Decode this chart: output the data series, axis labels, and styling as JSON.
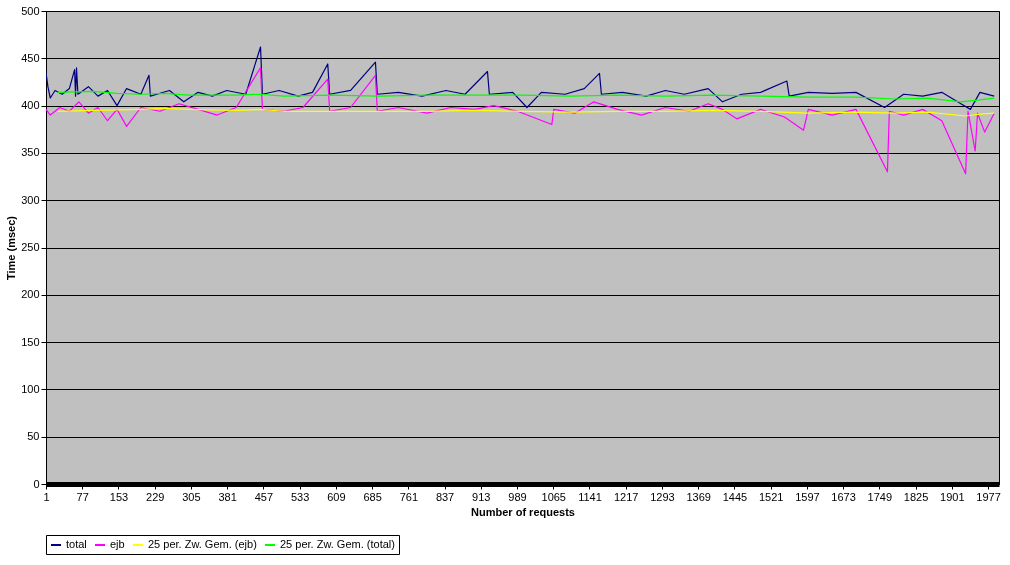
{
  "chart_data": {
    "type": "line",
    "xlabel": "Number of requests",
    "ylabel": "Time (msec)",
    "xlim": [
      1,
      2000
    ],
    "xticks": [
      1,
      77,
      153,
      229,
      305,
      381,
      457,
      533,
      609,
      685,
      761,
      837,
      913,
      989,
      1065,
      1141,
      1217,
      1293,
      1369,
      1445,
      1521,
      1597,
      1673,
      1749,
      1825,
      1901,
      1977
    ],
    "ylim": [
      0,
      500
    ],
    "yticks": [
      0,
      50,
      100,
      150,
      200,
      250,
      300,
      350,
      400,
      450,
      500
    ],
    "grid": "y",
    "legend": "bottom",
    "marker": "none",
    "line_style": "solid",
    "series": [
      {
        "name": "total",
        "color": "#000080",
        "x": [
          1,
          5,
          10,
          20,
          35,
          50,
          61,
          63,
          65,
          68,
          90,
          110,
          130,
          150,
          170,
          200,
          217,
          220,
          260,
          290,
          320,
          350,
          380,
          420,
          451,
          455,
          490,
          530,
          560,
          592,
          596,
          640,
          692,
          696,
          740,
          790,
          840,
          880,
          927,
          931,
          980,
          1010,
          1040,
          1090,
          1130,
          1162,
          1166,
          1210,
          1260,
          1300,
          1340,
          1390,
          1420,
          1460,
          1500,
          1555,
          1560,
          1600,
          1650,
          1700,
          1760,
          1800,
          1840,
          1880,
          1920,
          1940,
          1960,
          1990
        ],
        "values": [
          435,
          420,
          408,
          416,
          412,
          418,
          438,
          410,
          440,
          412,
          420,
          410,
          416,
          400,
          418,
          412,
          432,
          410,
          416,
          404,
          414,
          410,
          416,
          412,
          462,
          412,
          416,
          410,
          414,
          444,
          412,
          416,
          446,
          412,
          414,
          410,
          416,
          412,
          436,
          412,
          414,
          398,
          414,
          412,
          418,
          434,
          412,
          414,
          410,
          416,
          412,
          418,
          404,
          412,
          414,
          426,
          410,
          414,
          413,
          414,
          398,
          412,
          410,
          414,
          402,
          396,
          414,
          410
        ]
      },
      {
        "name": "ejb",
        "color": "#ff00ff",
        "x": [
          1,
          10,
          30,
          50,
          70,
          90,
          110,
          130,
          150,
          170,
          200,
          240,
          280,
          320,
          360,
          400,
          451,
          455,
          500,
          540,
          592,
          596,
          640,
          692,
          696,
          740,
          800,
          850,
          900,
          940,
          990,
          1062,
          1066,
          1110,
          1150,
          1200,
          1250,
          1300,
          1350,
          1390,
          1420,
          1450,
          1500,
          1550,
          1590,
          1600,
          1650,
          1700,
          1766,
          1770,
          1800,
          1840,
          1880,
          1930,
          1935,
          1950,
          1955,
          1970,
          1990
        ],
        "values": [
          396,
          390,
          398,
          394,
          404,
          392,
          398,
          384,
          396,
          378,
          398,
          394,
          402,
          396,
          390,
          398,
          440,
          396,
          394,
          398,
          428,
          394,
          398,
          432,
          394,
          398,
          392,
          398,
          396,
          400,
          394,
          380,
          396,
          392,
          404,
          396,
          390,
          398,
          394,
          402,
          396,
          386,
          396,
          388,
          374,
          396,
          390,
          396,
          330,
          394,
          390,
          396,
          384,
          328,
          394,
          352,
          392,
          372,
          392
        ]
      },
      {
        "name": "25 per. Zw. Gem. (ejb)",
        "color": "#ffff00",
        "x": [
          25,
          100,
          200,
          250,
          300,
          400,
          450,
          500,
          600,
          700,
          800,
          900,
          1000,
          1100,
          1200,
          1300,
          1400,
          1500,
          1600,
          1700,
          1780,
          1850,
          1930,
          1960,
          1990
        ],
        "values": [
          394,
          395,
          396,
          397,
          396,
          395,
          396,
          394,
          394,
          394,
          394,
          395,
          394,
          393,
          394,
          394,
          395,
          394,
          392,
          393,
          392,
          393,
          389,
          391,
          392
        ]
      },
      {
        "name": "25 per. Zw. Gem. (total)",
        "color": "#00ff00",
        "x": [
          25,
          100,
          150,
          200,
          250,
          300,
          400,
          450,
          500,
          600,
          700,
          800,
          900,
          1000,
          1100,
          1200,
          1300,
          1400,
          1500,
          1600,
          1700,
          1780,
          1850,
          1920,
          1960,
          1990
        ],
        "values": [
          414,
          415,
          413,
          412,
          413,
          411,
          411,
          412,
          410,
          411,
          410,
          411,
          411,
          411,
          410,
          411,
          410,
          411,
          410,
          409,
          409,
          407,
          408,
          404,
          406,
          408
        ]
      }
    ]
  }
}
